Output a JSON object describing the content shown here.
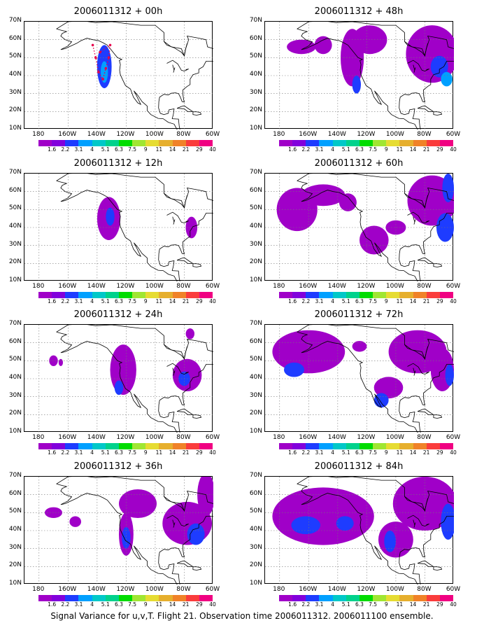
{
  "caption": "Signal Variance for u,v,T. Flight 21. Observation time 2006011312. 2006011100 ensemble.",
  "chart_data": {
    "type": "heatmap",
    "projection": "lat-lon map",
    "lon_range": [
      "170E",
      "60W"
    ],
    "lat_range": [
      "10N",
      "70N"
    ],
    "x_ticks": [
      "180",
      "160W",
      "140W",
      "120W",
      "100W",
      "80W",
      "60W"
    ],
    "y_ticks": [
      "10N",
      "20N",
      "30N",
      "40N",
      "50N",
      "60N",
      "70N"
    ],
    "grid": true,
    "colorbar": {
      "labels": [
        "1.6",
        "2.2",
        "3.1",
        "4",
        "5.1",
        "6.3",
        "7.5",
        "9",
        "11",
        "14",
        "21",
        "29",
        "40"
      ],
      "colors": [
        "#a000c8",
        "#8200dc",
        "#1e3cff",
        "#00a0ff",
        "#00c8c8",
        "#00d28c",
        "#00dc00",
        "#a0e632",
        "#e6dc32",
        "#e6af2d",
        "#f08228",
        "#fa3c3c",
        "#f00082"
      ]
    },
    "panels": [
      {
        "title": "2006011312 + 00h",
        "lead_hours": 0,
        "blobs": [
          {
            "lon": -135,
            "lat": 45,
            "rx": 5,
            "ry": 12,
            "level": 2
          },
          {
            "lon": -135,
            "lat": 42,
            "rx": 2.5,
            "ry": 6,
            "level": 3
          }
        ],
        "flight_track": [
          [
            -143,
            57
          ],
          [
            -141,
            50
          ],
          [
            -139,
            42
          ],
          [
            -136,
            38
          ],
          [
            -134,
            44
          ],
          [
            -132,
            50
          ],
          [
            -131,
            57
          ],
          [
            -138,
            53
          ]
        ]
      },
      {
        "title": "2006011312 + 12h",
        "lead_hours": 12,
        "blobs": [
          {
            "lon": -132,
            "lat": 45,
            "rx": 8,
            "ry": 12,
            "level": 1
          },
          {
            "lon": -131,
            "lat": 46,
            "rx": 3,
            "ry": 5,
            "level": 2
          },
          {
            "lon": -75,
            "lat": 40,
            "rx": 4,
            "ry": 6,
            "level": 1
          }
        ]
      },
      {
        "title": "2006011312 + 24h",
        "lead_hours": 24,
        "blobs": [
          {
            "lon": -122,
            "lat": 45,
            "rx": 9,
            "ry": 14,
            "level": 1
          },
          {
            "lon": -125,
            "lat": 35,
            "rx": 3,
            "ry": 4,
            "level": 2
          },
          {
            "lon": -78,
            "lat": 42,
            "rx": 10,
            "ry": 9,
            "level": 1
          },
          {
            "lon": -80,
            "lat": 40,
            "rx": 4,
            "ry": 4,
            "level": 2
          },
          {
            "lon": -76,
            "lat": 65,
            "rx": 3,
            "ry": 3,
            "level": 1
          },
          {
            "lon": -170,
            "lat": 50,
            "rx": 3,
            "ry": 3,
            "level": 1
          },
          {
            "lon": -165,
            "lat": 49,
            "rx": 1.5,
            "ry": 2,
            "level": 1
          }
        ]
      },
      {
        "title": "2006011312 + 36h",
        "lead_hours": 36,
        "blobs": [
          {
            "lon": -112,
            "lat": 55,
            "rx": 13,
            "ry": 8,
            "level": 1
          },
          {
            "lon": -120,
            "lat": 38,
            "rx": 5,
            "ry": 12,
            "level": 1
          },
          {
            "lon": -120,
            "lat": 36,
            "rx": 3,
            "ry": 6,
            "level": 2
          },
          {
            "lon": -78,
            "lat": 44,
            "rx": 17,
            "ry": 12,
            "level": 1
          },
          {
            "lon": -72,
            "lat": 38,
            "rx": 6,
            "ry": 6,
            "level": 2
          },
          {
            "lon": -65,
            "lat": 60,
            "rx": 6,
            "ry": 12,
            "level": 1
          },
          {
            "lon": -170,
            "lat": 50,
            "rx": 6,
            "ry": 3,
            "level": 1
          },
          {
            "lon": -155,
            "lat": 45,
            "rx": 4,
            "ry": 3,
            "level": 1
          }
        ]
      },
      {
        "title": "2006011312 + 48h",
        "lead_hours": 48,
        "blobs": [
          {
            "lon": -150,
            "lat": 57,
            "rx": 6,
            "ry": 5,
            "level": 1
          },
          {
            "lon": -165,
            "lat": 56,
            "rx": 10,
            "ry": 4,
            "level": 1
          },
          {
            "lon": -130,
            "lat": 50,
            "rx": 8,
            "ry": 16,
            "level": 1
          },
          {
            "lon": -118,
            "lat": 60,
            "rx": 12,
            "ry": 8,
            "level": 1
          },
          {
            "lon": -127,
            "lat": 35,
            "rx": 3,
            "ry": 5,
            "level": 2
          },
          {
            "lon": -75,
            "lat": 52,
            "rx": 18,
            "ry": 16,
            "level": 1
          },
          {
            "lon": -70,
            "lat": 45,
            "rx": 6,
            "ry": 6,
            "level": 2
          },
          {
            "lon": -65,
            "lat": 38,
            "rx": 4,
            "ry": 4,
            "level": 3
          }
        ]
      },
      {
        "title": "2006011312 + 60h",
        "lead_hours": 60,
        "blobs": [
          {
            "lon": -168,
            "lat": 50,
            "rx": 14,
            "ry": 12,
            "level": 1
          },
          {
            "lon": -150,
            "lat": 58,
            "rx": 15,
            "ry": 6,
            "level": 1
          },
          {
            "lon": -133,
            "lat": 54,
            "rx": 6,
            "ry": 5,
            "level": 1
          },
          {
            "lon": -115,
            "lat": 33,
            "rx": 10,
            "ry": 8,
            "level": 1
          },
          {
            "lon": -100,
            "lat": 40,
            "rx": 7,
            "ry": 4,
            "level": 1
          },
          {
            "lon": -75,
            "lat": 55,
            "rx": 17,
            "ry": 14,
            "level": 1
          },
          {
            "lon": -66,
            "lat": 40,
            "rx": 6,
            "ry": 8,
            "level": 2
          },
          {
            "lon": -64,
            "lat": 62,
            "rx": 4,
            "ry": 8,
            "level": 2
          }
        ]
      },
      {
        "title": "2006011312 + 72h",
        "lead_hours": 72,
        "blobs": [
          {
            "lon": -160,
            "lat": 55,
            "rx": 25,
            "ry": 12,
            "level": 1
          },
          {
            "lon": -170,
            "lat": 45,
            "rx": 7,
            "ry": 4,
            "level": 2
          },
          {
            "lon": -105,
            "lat": 35,
            "rx": 10,
            "ry": 6,
            "level": 1
          },
          {
            "lon": -110,
            "lat": 28,
            "rx": 5,
            "ry": 4,
            "level": 2
          },
          {
            "lon": -85,
            "lat": 55,
            "rx": 20,
            "ry": 12,
            "level": 1
          },
          {
            "lon": -68,
            "lat": 45,
            "rx": 8,
            "ry": 12,
            "level": 1
          },
          {
            "lon": -63,
            "lat": 42,
            "rx": 3,
            "ry": 6,
            "level": 2
          },
          {
            "lon": -125,
            "lat": 58,
            "rx": 5,
            "ry": 3,
            "level": 1
          }
        ]
      },
      {
        "title": "2006011312 + 84h",
        "lead_hours": 84,
        "blobs": [
          {
            "lon": -150,
            "lat": 48,
            "rx": 35,
            "ry": 16,
            "level": 1
          },
          {
            "lon": -162,
            "lat": 43,
            "rx": 10,
            "ry": 5,
            "level": 2
          },
          {
            "lon": -135,
            "lat": 44,
            "rx": 6,
            "ry": 4,
            "level": 2
          },
          {
            "lon": -100,
            "lat": 35,
            "rx": 12,
            "ry": 10,
            "level": 1
          },
          {
            "lon": -104,
            "lat": 34,
            "rx": 4,
            "ry": 6,
            "level": 2
          },
          {
            "lon": -80,
            "lat": 55,
            "rx": 22,
            "ry": 15,
            "level": 1
          },
          {
            "lon": -64,
            "lat": 45,
            "rx": 5,
            "ry": 10,
            "level": 2
          }
        ]
      }
    ]
  }
}
